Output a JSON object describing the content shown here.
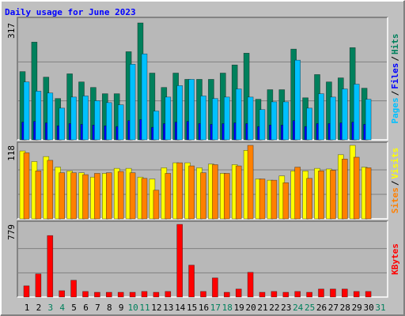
{
  "chart_data": {
    "type": "bar",
    "title": "Daily usage for June 2023",
    "categories": [
      "1",
      "2",
      "3",
      "4",
      "5",
      "6",
      "7",
      "8",
      "9",
      "10",
      "11",
      "12",
      "13",
      "14",
      "15",
      "16",
      "17",
      "18",
      "19",
      "20",
      "21",
      "22",
      "23",
      "24",
      "25",
      "26",
      "27",
      "28",
      "29",
      "30",
      "31"
    ],
    "weekend": [
      false,
      false,
      true,
      true,
      false,
      false,
      false,
      false,
      false,
      true,
      true,
      false,
      false,
      false,
      false,
      false,
      true,
      true,
      false,
      false,
      false,
      false,
      false,
      true,
      true,
      false,
      false,
      false,
      false,
      false,
      true
    ],
    "weekday_color": "#000000",
    "weekend_color": "#00805C",
    "legend_separator": "/",
    "panels": [
      {
        "ylim": [
          0,
          317
        ],
        "yticks": [
          317
        ],
        "series": [
          {
            "name": "Hits",
            "color": "#00805C",
            "values": [
              185,
              265,
              170,
              112,
              179,
              157,
              142,
              125,
              125,
              239,
              317,
              181,
              142,
              181,
              164,
              164,
              164,
              181,
              203,
              235,
              110,
              136,
              136,
              246,
              114,
              177,
              157,
              168,
              250,
              140,
              null
            ]
          },
          {
            "name": "Files",
            "color": "#0000FF",
            "values": [
              48,
              50,
              46,
              38,
              44,
              42,
              40,
              38,
              36,
              52,
              55,
              34,
              44,
              48,
              50,
              44,
              42,
              44,
              46,
              44,
              36,
              40,
              40,
              52,
              36,
              44,
              44,
              46,
              48,
              42,
              null
            ]
          },
          {
            "name": "Pages",
            "color": "#00C0FF",
            "values": [
              157,
              132,
              127,
              86,
              116,
              119,
              106,
              101,
              95,
              205,
              233,
              78,
              116,
              147,
              164,
              119,
              112,
              116,
              138,
              116,
              82,
              103,
              103,
              216,
              86,
              125,
              116,
              138,
              151,
              110,
              null
            ]
          }
        ]
      },
      {
        "ylim": [
          0,
          118
        ],
        "yticks": [
          118
        ],
        "series": [
          {
            "name": "Visits",
            "color": "#FFFF00",
            "values": [
              109,
              92,
              100,
              83,
              77,
              74,
              67,
              73,
              81,
              81,
              67,
              64,
              82,
              90,
              90,
              82,
              88,
              73,
              87,
              110,
              64,
              62,
              69,
              77,
              77,
              81,
              80,
              103,
              118,
              83,
              null
            ]
          },
          {
            "name": "Sites",
            "color": "#FF8000",
            "values": [
              106,
              77,
              94,
              74,
              74,
              71,
              73,
              74,
              76,
              74,
              65,
              46,
              73,
              90,
              85,
              74,
              87,
              73,
              85,
              118,
              64,
              62,
              58,
              83,
              65,
              77,
              78,
              96,
              99,
              82,
              null
            ]
          }
        ]
      },
      {
        "ylim": [
          0,
          779
        ],
        "yticks": [
          779
        ],
        "series": [
          {
            "name": "KBytes",
            "color": "#FF0000",
            "values": [
              120,
              248,
              659,
              68,
              180,
              60,
              51,
              51,
              51,
              51,
              60,
              51,
              60,
              779,
              342,
              60,
              205,
              51,
              86,
              265,
              51,
              60,
              51,
              60,
              51,
              86,
              86,
              86,
              60,
              60,
              null
            ]
          }
        ]
      }
    ]
  }
}
